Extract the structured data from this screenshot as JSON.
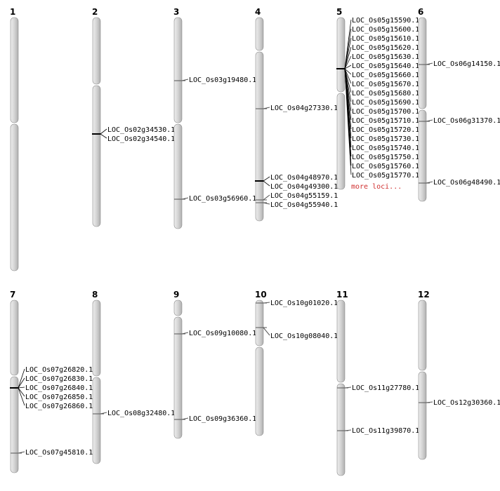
{
  "colors": {
    "chromosome_fill": "#d4d4d4",
    "chromosome_edge": "#8a8a8a",
    "marker": "#555555",
    "more_loci": "#d03030"
  },
  "chromosomes": [
    {
      "label": "1",
      "loci": []
    },
    {
      "label": "2",
      "loci": [
        "LOC_Os02g34530.1",
        "LOC_Os02g34540.1"
      ]
    },
    {
      "label": "3",
      "loci": [
        "LOC_Os03g19480.1",
        "LOC_Os03g56960.1"
      ]
    },
    {
      "label": "4",
      "loci": [
        "LOC_Os04g27330.1",
        "LOC_Os04g48970.1",
        "LOC_Os04g49300.1",
        "LOC_Os04g55159.1",
        "LOC_Os04g55940.1"
      ]
    },
    {
      "label": "5",
      "loci": [
        "LOC_Os05g15590.1",
        "LOC_Os05g15600.1",
        "LOC_Os05g15610.1",
        "LOC_Os05g15620.1",
        "LOC_Os05g15630.1",
        "LOC_Os05g15640.1",
        "LOC_Os05g15660.1",
        "LOC_Os05g15670.1",
        "LOC_Os05g15680.1",
        "LOC_Os05g15690.1",
        "LOC_Os05g15700.1",
        "LOC_Os05g15710.1",
        "LOC_Os05g15720.1",
        "LOC_Os05g15730.1",
        "LOC_Os05g15740.1",
        "LOC_Os05g15750.1",
        "LOC_Os05g15760.1",
        "LOC_Os05g15770.1"
      ],
      "more": "more loci..."
    },
    {
      "label": "6",
      "loci": [
        "LOC_Os06g14150.1",
        "LOC_Os06g31370.1",
        "LOC_Os06g48490.1"
      ]
    },
    {
      "label": "7",
      "loci": [
        "LOC_Os07g26820.1",
        "LOC_Os07g26830.1",
        "LOC_Os07g26840.1",
        "LOC_Os07g26850.1",
        "LOC_Os07g26860.1",
        "LOC_Os07g45810.1"
      ]
    },
    {
      "label": "8",
      "loci": [
        "LOC_Os08g32480.1"
      ]
    },
    {
      "label": "9",
      "loci": [
        "LOC_Os09g10080.1",
        "LOC_Os09g36360.1"
      ]
    },
    {
      "label": "10",
      "loci": [
        "LOC_Os10g01020.1",
        "LOC_Os10g08040.1"
      ]
    },
    {
      "label": "11",
      "loci": [
        "LOC_Os11g27780.1",
        "LOC_Os11g39870.1"
      ]
    },
    {
      "label": "12",
      "loci": [
        "LOC_Os12g30360.1"
      ]
    }
  ]
}
